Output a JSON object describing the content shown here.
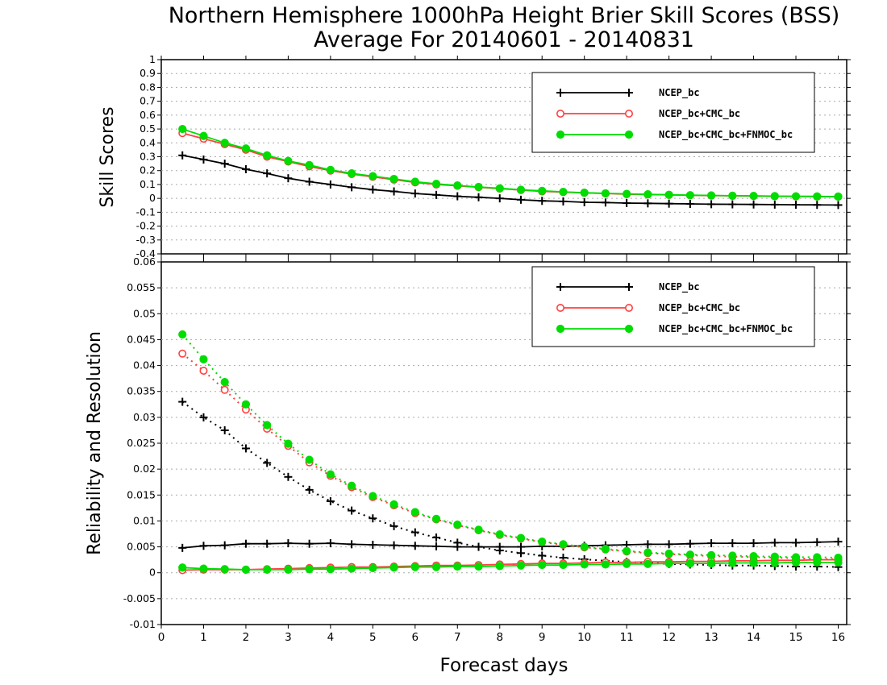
{
  "title": {
    "line1": "Northern Hemisphere 1000hPa Height Brier Skill Scores (BSS)",
    "line2": "Average For 20140601 - 20140831"
  },
  "xlabel": "Forecast days",
  "colors": {
    "ncep": "#000000",
    "ncep_cmc": "#ff4040",
    "ncep_cmc_fnmoc": "#00dd00",
    "grid": "#aaaaaa"
  },
  "legend": [
    "NCEP_bc",
    "NCEP_bc+CMC_bc",
    "NCEP_bc+CMC_bc+FNMOC_bc"
  ],
  "chart_data": [
    {
      "type": "line",
      "panel": "top",
      "ylabel": "Skill Scores",
      "xlim": [
        0,
        16.2
      ],
      "ylim": [
        -0.4,
        1
      ],
      "xticks": [
        "0",
        "1",
        "2",
        "3",
        "4",
        "5",
        "6",
        "7",
        "8",
        "9",
        "10",
        "11",
        "12",
        "13",
        "14",
        "15",
        "16"
      ],
      "yticks": [
        "-0.4",
        "-0.3",
        "-0.2",
        "-0.1",
        "0",
        "0.1",
        "0.2",
        "0.3",
        "0.4",
        "0.5",
        "0.6",
        "0.7",
        "0.8",
        "0.9",
        "1"
      ],
      "grid": true,
      "legend_position": "top-right",
      "x": [
        0.5,
        1,
        1.5,
        2,
        2.5,
        3,
        3.5,
        4,
        4.5,
        5,
        5.5,
        6,
        6.5,
        7,
        7.5,
        8,
        8.5,
        9,
        9.5,
        10,
        10.5,
        11,
        11.5,
        12,
        12.5,
        13,
        13.5,
        14,
        14.5,
        15,
        15.5,
        16
      ],
      "series": [
        {
          "name": "NCEP_bc",
          "marker": "plus",
          "color": "#000000",
          "values": [
            0.31,
            0.28,
            0.25,
            0.21,
            0.18,
            0.145,
            0.12,
            0.1,
            0.08,
            0.063,
            0.05,
            0.035,
            0.025,
            0.015,
            0.008,
            0.0,
            -0.01,
            -0.018,
            -0.022,
            -0.028,
            -0.03,
            -0.034,
            -0.036,
            -0.038,
            -0.04,
            -0.042,
            -0.043,
            -0.044,
            -0.045,
            -0.046,
            -0.047,
            -0.048
          ]
        },
        {
          "name": "NCEP_bc+CMC_bc",
          "marker": "circle-open",
          "color": "#ff4040",
          "values": [
            0.47,
            0.43,
            0.39,
            0.35,
            0.3,
            0.265,
            0.23,
            0.2,
            0.175,
            0.155,
            0.135,
            0.115,
            0.1,
            0.09,
            0.08,
            0.07,
            0.06,
            0.05,
            0.045,
            0.04,
            0.035,
            0.03,
            0.028,
            0.025,
            0.022,
            0.02,
            0.018,
            0.017,
            0.015,
            0.014,
            0.013,
            0.012
          ]
        },
        {
          "name": "NCEP_bc+CMC_bc+FNMOC_bc",
          "marker": "circle-filled",
          "color": "#00dd00",
          "values": [
            0.5,
            0.45,
            0.4,
            0.36,
            0.31,
            0.27,
            0.24,
            0.205,
            0.18,
            0.16,
            0.14,
            0.12,
            0.105,
            0.093,
            0.082,
            0.072,
            0.062,
            0.054,
            0.047,
            0.041,
            0.036,
            0.032,
            0.029,
            0.026,
            0.023,
            0.021,
            0.019,
            0.018,
            0.016,
            0.015,
            0.014,
            0.013
          ]
        }
      ]
    },
    {
      "type": "line",
      "panel": "bottom",
      "ylabel": "Reliability and Resolution",
      "xlim": [
        0,
        16.2
      ],
      "ylim": [
        -0.01,
        0.06
      ],
      "xticks": [
        "0",
        "1",
        "2",
        "3",
        "4",
        "5",
        "6",
        "7",
        "8",
        "9",
        "10",
        "11",
        "12",
        "13",
        "14",
        "15",
        "16"
      ],
      "yticks": [
        "-0.01",
        "-0.005",
        "0",
        "0.005",
        "0.01",
        "0.015",
        "0.02",
        "0.025",
        "0.03",
        "0.035",
        "0.04",
        "0.045",
        "0.05",
        "0.055",
        "0.06"
      ],
      "grid": true,
      "legend_position": "top-right",
      "x": [
        0.5,
        1,
        1.5,
        2,
        2.5,
        3,
        3.5,
        4,
        4.5,
        5,
        5.5,
        6,
        6.5,
        7,
        7.5,
        8,
        8.5,
        9,
        9.5,
        10,
        10.5,
        11,
        11.5,
        12,
        12.5,
        13,
        13.5,
        14,
        14.5,
        15,
        15.5,
        16
      ],
      "series": [
        {
          "name": "NCEP_bc",
          "marker": "plus",
          "color": "#000000",
          "line": "dotted",
          "values": [
            0.033,
            0.03,
            0.0275,
            0.024,
            0.0212,
            0.0185,
            0.016,
            0.0138,
            0.012,
            0.0105,
            0.009,
            0.0078,
            0.0068,
            0.0058,
            0.005,
            0.0043,
            0.0038,
            0.0033,
            0.0029,
            0.0026,
            0.0023,
            0.0021,
            0.0019,
            0.0017,
            0.0016,
            0.0015,
            0.0014,
            0.0014,
            0.0013,
            0.0012,
            0.0012,
            0.0011
          ]
        },
        {
          "name": "NCEP_bc",
          "marker": "plus",
          "color": "#000000",
          "line": "solid",
          "values": [
            0.0048,
            0.0052,
            0.0053,
            0.0056,
            0.0056,
            0.0057,
            0.0056,
            0.0057,
            0.0055,
            0.0054,
            0.0053,
            0.0052,
            0.0051,
            0.005,
            0.005,
            0.005,
            0.005,
            0.0051,
            0.0051,
            0.0052,
            0.0053,
            0.0054,
            0.0055,
            0.0055,
            0.0056,
            0.0057,
            0.0057,
            0.0057,
            0.0058,
            0.0058,
            0.0059,
            0.006
          ]
        },
        {
          "name": "NCEP_bc+CMC_bc",
          "marker": "circle-open",
          "color": "#ff4040",
          "line": "dotted",
          "values": [
            0.0423,
            0.039,
            0.0353,
            0.0315,
            0.0278,
            0.0245,
            0.0213,
            0.0187,
            0.0165,
            0.0146,
            0.013,
            0.0115,
            0.0103,
            0.0092,
            0.0082,
            0.0073,
            0.0066,
            0.0059,
            0.0054,
            0.0049,
            0.0045,
            0.0041,
            0.0038,
            0.0036,
            0.0034,
            0.0032,
            0.0031,
            0.003,
            0.0029,
            0.0028,
            0.0027,
            0.0026
          ]
        },
        {
          "name": "NCEP_bc+CMC_bc",
          "marker": "circle-open",
          "color": "#ff4040",
          "line": "solid",
          "values": [
            0.0005,
            0.0006,
            0.0006,
            0.0006,
            0.0007,
            0.0008,
            0.0009,
            0.001,
            0.0011,
            0.0011,
            0.0012,
            0.0013,
            0.0014,
            0.0014,
            0.0015,
            0.0016,
            0.0017,
            0.0018,
            0.0018,
            0.0019,
            0.002,
            0.002,
            0.0021,
            0.0021,
            0.0022,
            0.0022,
            0.0023,
            0.0023,
            0.0024,
            0.0024,
            0.0025,
            0.0025
          ]
        },
        {
          "name": "NCEP_bc+CMC_bc+FNMOC_bc",
          "marker": "circle-filled",
          "color": "#00dd00",
          "line": "dotted",
          "values": [
            0.046,
            0.0412,
            0.0368,
            0.0325,
            0.0285,
            0.0249,
            0.0218,
            0.019,
            0.0168,
            0.0148,
            0.0132,
            0.0117,
            0.0104,
            0.0093,
            0.0083,
            0.0074,
            0.0067,
            0.006,
            0.0055,
            0.005,
            0.0046,
            0.0042,
            0.0039,
            0.0037,
            0.0035,
            0.0034,
            0.0033,
            0.0032,
            0.0031,
            0.003,
            0.003,
            0.0029
          ]
        },
        {
          "name": "NCEP_bc+CMC_bc+FNMOC_bc",
          "marker": "circle-filled",
          "color": "#00dd00",
          "line": "solid",
          "values": [
            0.001,
            0.0008,
            0.0007,
            0.0006,
            0.0006,
            0.0006,
            0.0007,
            0.0007,
            0.0008,
            0.0009,
            0.001,
            0.0011,
            0.0011,
            0.0012,
            0.0012,
            0.0013,
            0.0014,
            0.0015,
            0.0015,
            0.0016,
            0.0016,
            0.0017,
            0.0017,
            0.0018,
            0.0018,
            0.0018,
            0.0019,
            0.0019,
            0.0019,
            0.002,
            0.002,
            0.002
          ]
        }
      ]
    }
  ]
}
